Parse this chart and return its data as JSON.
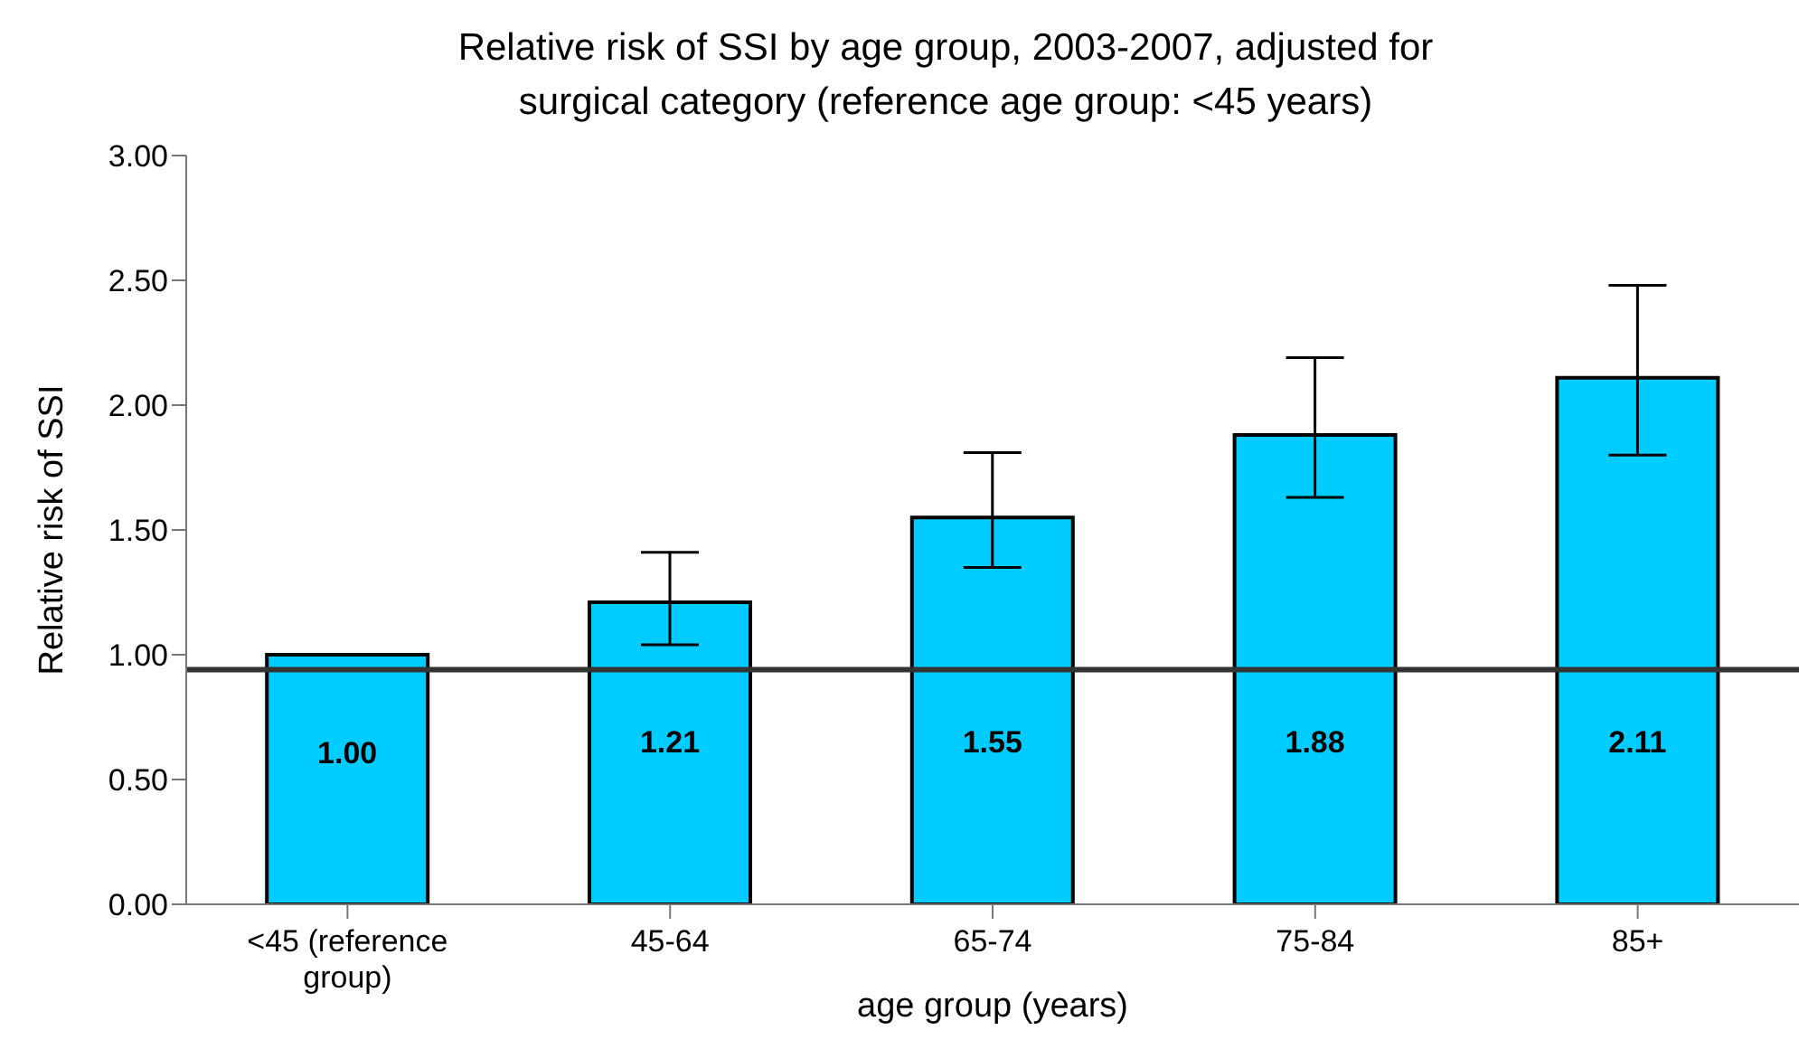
{
  "chart_data": {
    "type": "bar",
    "title": "Relative risk of SSI by age group, 2003-2007, adjusted for surgical category (reference age group: <45 years)",
    "xlabel": "age group (years)",
    "ylabel": "Relative risk of SSI",
    "categories": [
      "<45 (reference group)",
      "45-64",
      "65-74",
      "75-84",
      "85+"
    ],
    "values": [
      1.0,
      1.21,
      1.55,
      1.88,
      2.11
    ],
    "errors": [
      null,
      [
        1.04,
        1.41
      ],
      [
        1.35,
        1.81
      ],
      [
        1.63,
        2.19
      ],
      [
        1.8,
        2.48
      ]
    ],
    "color": "#00ccff",
    "value_labels": [
      "1.00",
      "1.21",
      "1.55",
      "1.88",
      "2.11"
    ],
    "ylim": [
      0,
      3
    ],
    "yticks": [
      {
        "value": 0,
        "label": "0.00"
      },
      {
        "value": 0.5,
        "label": "0.50"
      },
      {
        "value": 1,
        "label": "1.00"
      },
      {
        "value": 1.5,
        "label": "1.50"
      },
      {
        "value": 2,
        "label": "2.00"
      },
      {
        "value": 2.5,
        "label": "2.50"
      },
      {
        "value": 3,
        "label": "3.00"
      }
    ],
    "ref_lines": [
      {
        "axis": "y",
        "value": 0.94,
        "label": null,
        "color": "#333333"
      }
    ],
    "grid": false,
    "legend": false
  }
}
